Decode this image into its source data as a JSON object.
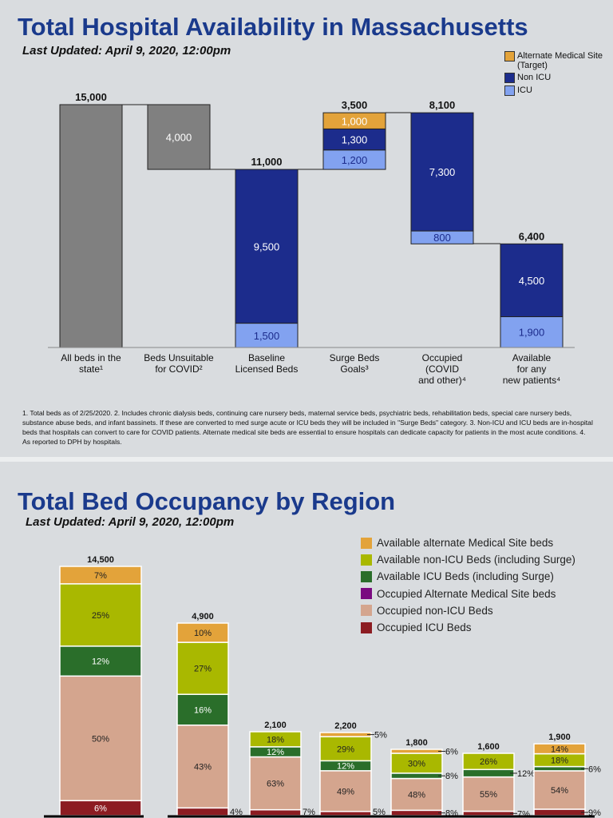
{
  "slide1": {
    "title": "Total Hospital Availability in Massachusetts",
    "updated": "Last Updated: April 9, 2020, 12:00pm",
    "footnote": "1. Total beds as of 2/25/2020. 2. Includes chronic dialysis beds, continuing care nursery beds, maternal service beds, psychiatric beds, rehabilitation beds, special care nursery beds, substance abuse beds, and infant bassinets. If these are converted to med surge acute or ICU beds they will be included in \"Surge Beds\" category. 3. Non-ICU and ICU beds are in-hospital beds that hospitals can convert to care for COVID patients. Alternate medical site beds are essential to ensure hospitals can dedicate capacity for patients in the most acute conditions. 4. As reported to DPH by hospitals."
  },
  "slide2": {
    "title": "Total Bed Occupancy by Region",
    "updated": "Last Updated: April 9, 2020, 12:00pm"
  },
  "chart_data": [
    {
      "type": "waterfall",
      "ylim": [
        0,
        15000
      ],
      "legend": [
        {
          "name": "Alternate Medical Site (Target)",
          "color": "#e3a33a"
        },
        {
          "name": "Non ICU",
          "color": "#1c2c8c"
        },
        {
          "name": "ICU",
          "color": "#82a2f0"
        }
      ],
      "categories": [
        "All beds in the state¹",
        "Beds Unsuitable for COVID²",
        "Baseline Licensed Beds",
        "Surge Beds Goals³",
        "Occupied (COVID and other)⁴",
        "Available for any new patients⁴"
      ],
      "bars": [
        {
          "total": "15,000",
          "base": 0,
          "segments": [
            {
              "series": "Total",
              "value": 15000,
              "label": ""
            }
          ]
        },
        {
          "total": "",
          "base": 11000,
          "segments": [
            {
              "series": "Total",
              "value": 4000,
              "label": "4,000"
            }
          ]
        },
        {
          "total": "11,000",
          "base": 0,
          "segments": [
            {
              "series": "ICU",
              "value": 1500,
              "label": "1,500"
            },
            {
              "series": "Non ICU",
              "value": 9500,
              "label": "9,500"
            }
          ]
        },
        {
          "total": "3,500",
          "base": 11000,
          "segments": [
            {
              "series": "ICU",
              "value": 1200,
              "label": "1,200"
            },
            {
              "series": "Non ICU",
              "value": 1300,
              "label": "1,300"
            },
            {
              "series": "Alternate Medical Site (Target)",
              "value": 1000,
              "label": "1,000"
            }
          ]
        },
        {
          "total": "8,100",
          "base": 6400,
          "segments": [
            {
              "series": "ICU",
              "value": 800,
              "label": "800"
            },
            {
              "series": "Non ICU",
              "value": 7300,
              "label": "7,300"
            }
          ]
        },
        {
          "total": "6,400",
          "base": 0,
          "segments": [
            {
              "series": "ICU",
              "value": 1900,
              "label": "1,900"
            },
            {
              "series": "Non ICU",
              "value": 4500,
              "label": "4,500"
            }
          ]
        }
      ],
      "gray": "#808080"
    },
    {
      "type": "stacked-bar-percent",
      "series": [
        {
          "name": "Occupied ICU Beds",
          "color": "#8c1c22",
          "values": [
            6,
            4,
            7,
            5,
            8,
            7,
            9
          ]
        },
        {
          "name": "Occupied non-ICU Beds",
          "color": "#d4a58e",
          "values": [
            50,
            43,
            63,
            49,
            48,
            55,
            54
          ]
        },
        {
          "name": "Occupied Alternate Medical Site  beds",
          "color": "#7a0a80",
          "values": [
            0,
            0,
            0,
            0,
            0,
            0,
            0
          ]
        },
        {
          "name": "Available ICU Beds (including Surge)",
          "color": "#2a6e2a",
          "values": [
            12,
            16,
            12,
            12,
            8,
            12,
            6
          ]
        },
        {
          "name": "Available non-ICU Beds (including Surge)",
          "color": "#a9b800",
          "values": [
            25,
            27,
            18,
            29,
            30,
            26,
            18
          ]
        },
        {
          "name": "Available alternate Medical Site beds",
          "color": "#e3a33a",
          "values": [
            7,
            10,
            0,
            5,
            6,
            0,
            14
          ]
        }
      ],
      "totals": [
        "14,500",
        "4,900",
        "2,100",
        "2,200",
        "1,800",
        "1,600",
        "1,900"
      ]
    }
  ]
}
